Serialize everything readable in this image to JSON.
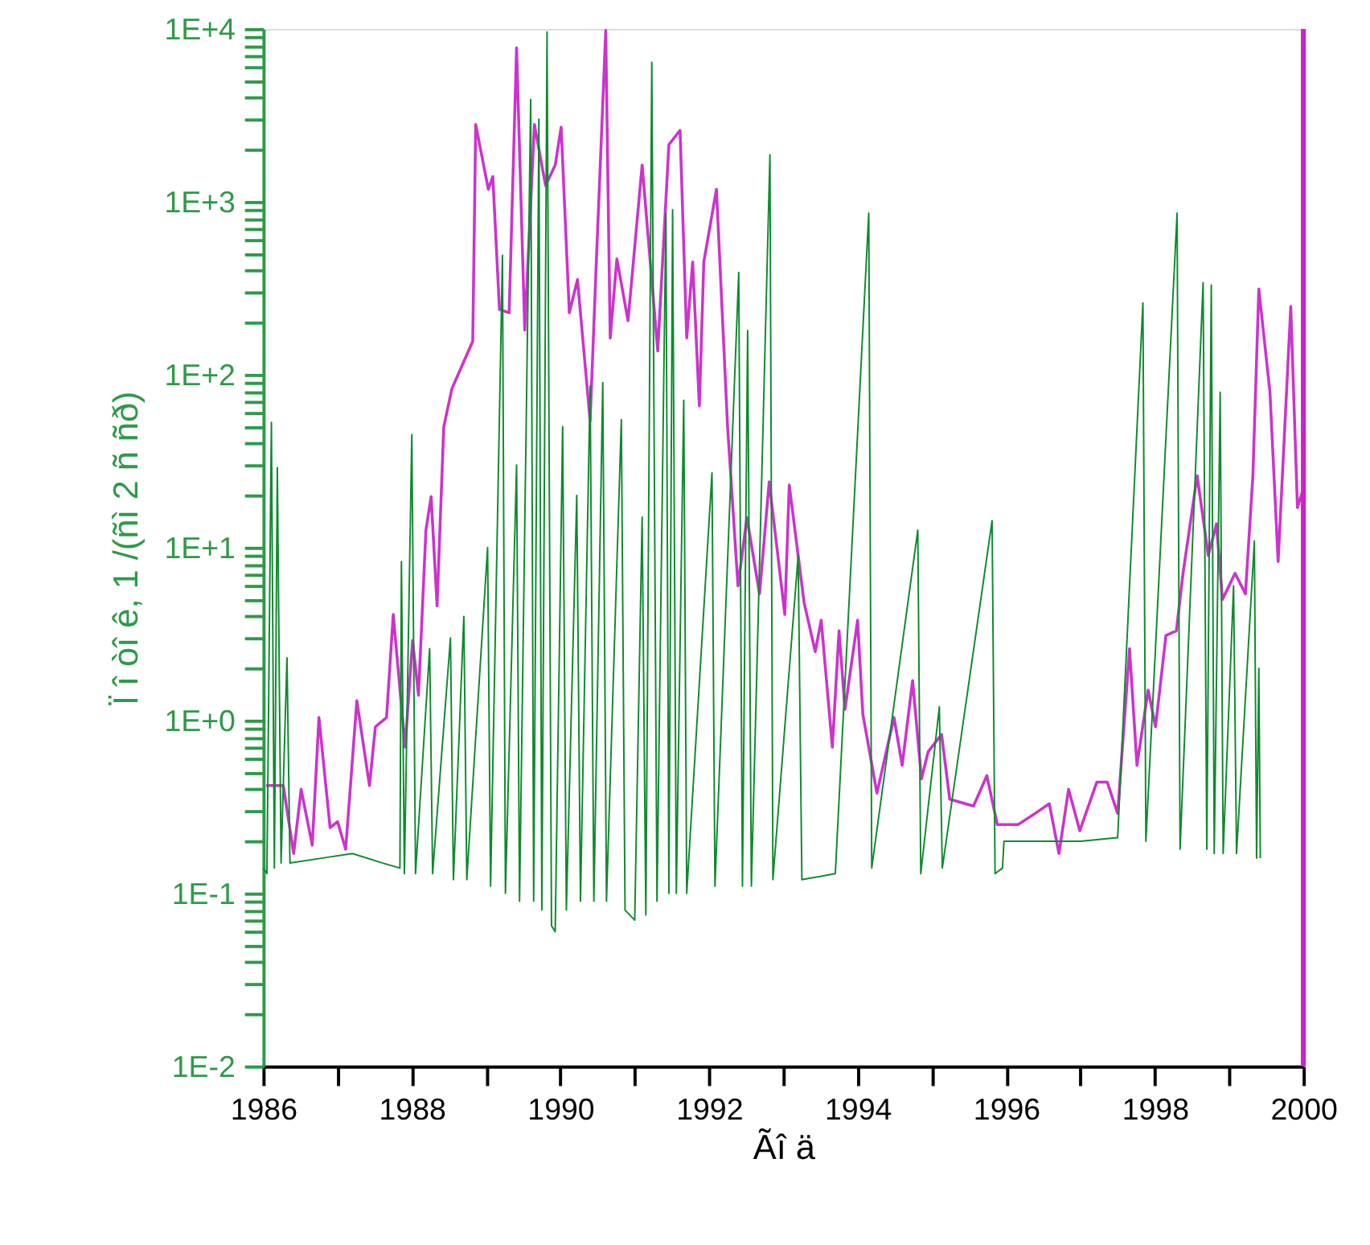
{
  "chart_data": {
    "type": "line",
    "xlabel": "Ãî ä",
    "ylabel": "Ï î òî ê, 1 /(ñì 2 ñ ñð)",
    "log": "y",
    "grid": false,
    "line_style": "solid",
    "marker": "none",
    "xlim": [
      1986,
      2000
    ],
    "xticks": [
      1986,
      {
        "value": 1987,
        "label": null
      },
      1988,
      {
        "value": 1989,
        "label": null
      },
      1990,
      {
        "value": 1991,
        "label": null
      },
      1992,
      {
        "value": 1993,
        "label": null
      },
      1994,
      {
        "value": 1995,
        "label": null
      },
      1996,
      {
        "value": 1997,
        "label": null
      },
      1998,
      {
        "value": 1999,
        "label": null
      },
      2000
    ],
    "ylim": [
      0.01,
      10000
    ],
    "yticks": [
      {
        "value": 0.01,
        "label": "1E-2"
      },
      {
        "value": 0.02,
        "label": null
      },
      {
        "value": 0.03,
        "label": null
      },
      {
        "value": 0.04,
        "label": null
      },
      {
        "value": 0.05,
        "label": null
      },
      {
        "value": 0.06,
        "label": null
      },
      {
        "value": 0.07,
        "label": null
      },
      {
        "value": 0.08,
        "label": null
      },
      {
        "value": 0.09,
        "label": null
      },
      {
        "value": 0.1,
        "label": "1E-1"
      },
      {
        "value": 0.2,
        "label": null
      },
      {
        "value": 0.3,
        "label": null
      },
      {
        "value": 0.4,
        "label": null
      },
      {
        "value": 0.5,
        "label": null
      },
      {
        "value": 0.6,
        "label": null
      },
      {
        "value": 0.7,
        "label": null
      },
      {
        "value": 0.8,
        "label": null
      },
      {
        "value": 0.9,
        "label": null
      },
      {
        "value": 1,
        "label": "1E+0"
      },
      {
        "value": 2,
        "label": null
      },
      {
        "value": 3,
        "label": null
      },
      {
        "value": 4,
        "label": null
      },
      {
        "value": 5,
        "label": null
      },
      {
        "value": 6,
        "label": null
      },
      {
        "value": 7,
        "label": null
      },
      {
        "value": 8,
        "label": null
      },
      {
        "value": 9,
        "label": null
      },
      {
        "value": 10,
        "label": "1E+1"
      },
      {
        "value": 20,
        "label": null
      },
      {
        "value": 30,
        "label": null
      },
      {
        "value": 40,
        "label": null
      },
      {
        "value": 50,
        "label": null
      },
      {
        "value": 60,
        "label": null
      },
      {
        "value": 70,
        "label": null
      },
      {
        "value": 80,
        "label": null
      },
      {
        "value": 90,
        "label": null
      },
      {
        "value": 100,
        "label": "1E+2"
      },
      {
        "value": 200,
        "label": null
      },
      {
        "value": 300,
        "label": null
      },
      {
        "value": 400,
        "label": null
      },
      {
        "value": 500,
        "label": null
      },
      {
        "value": 600,
        "label": null
      },
      {
        "value": 700,
        "label": null
      },
      {
        "value": 800,
        "label": null
      },
      {
        "value": 900,
        "label": null
      },
      {
        "value": 1000,
        "label": "1E+3"
      },
      {
        "value": 2000,
        "label": null
      },
      {
        "value": 3000,
        "label": null
      },
      {
        "value": 4000,
        "label": null
      },
      {
        "value": 5000,
        "label": null
      },
      {
        "value": 6000,
        "label": null
      },
      {
        "value": 7000,
        "label": null
      },
      {
        "value": 8000,
        "label": null
      },
      {
        "value": 9000,
        "label": null
      },
      {
        "value": 10000,
        "label": "1E+4"
      }
    ],
    "series": [
      {
        "color": "#cc33cc",
        "x": [
          1986.04,
          1986.27,
          1986.41,
          1986.51,
          1986.66,
          1986.75,
          1986.9,
          1987.0,
          1987.11,
          1987.26,
          1987.43,
          1987.51,
          1987.66,
          1987.75,
          1987.91,
          1988.01,
          1988.09,
          1988.19,
          1988.26,
          1988.34,
          1988.43,
          1988.54,
          1988.82,
          1988.86,
          1989.03,
          1989.09,
          1989.18,
          1989.31,
          1989.41,
          1989.52,
          1989.65,
          1989.8,
          1989.93,
          1990.01,
          1990.12,
          1990.23,
          1990.4,
          1990.48,
          1990.61,
          1990.67,
          1990.76,
          1990.91,
          1991.1,
          1991.31,
          1991.46,
          1991.61,
          1991.7,
          1991.78,
          1991.87,
          1991.93,
          1992.1,
          1992.25,
          1992.39,
          1992.51,
          1992.68,
          1992.81,
          1993.02,
          1993.08,
          1993.28,
          1993.43,
          1993.51,
          1993.66,
          1993.75,
          1993.83,
          1994.0,
          1994.07,
          1994.26,
          1994.49,
          1994.6,
          1994.74,
          1994.86,
          1994.95,
          1995.13,
          1995.24,
          1995.56,
          1995.74,
          1995.88,
          1996.16,
          1996.39,
          1996.58,
          1996.71,
          1996.84,
          1996.99,
          1997.22,
          1997.36,
          1997.5,
          1997.66,
          1997.76,
          1997.91,
          1998.01,
          1998.15,
          1998.29,
          1998.38,
          1998.57,
          1998.72,
          1998.83,
          1998.91,
          1999.08,
          1999.22,
          1999.32,
          1999.4,
          1999.55,
          1999.66,
          1999.83,
          1999.92,
          2000.0
        ],
        "values": [
          0.42,
          0.42,
          0.17,
          0.4,
          0.19,
          1.04,
          0.24,
          0.26,
          0.18,
          1.3,
          0.42,
          0.92,
          1.04,
          4.1,
          0.7,
          2.9,
          1.4,
          12.6,
          19.7,
          4.6,
          50,
          83,
          156,
          2800,
          1180,
          1400,
          238,
          228,
          7760,
          181,
          2800,
          1240,
          1630,
          2700,
          228,
          355,
          54,
          412,
          9800,
          163,
          468,
          205,
          1630,
          137,
          2140,
          2590,
          163,
          448,
          66,
          448,
          1180,
          50,
          6.0,
          14.9,
          5.4,
          24,
          4.1,
          23,
          4.8,
          2.5,
          3.8,
          0.7,
          3.3,
          1.16,
          3.8,
          1.09,
          0.38,
          1.04,
          0.55,
          1.7,
          0.46,
          0.66,
          0.83,
          0.35,
          0.32,
          0.48,
          0.25,
          0.25,
          0.29,
          0.33,
          0.17,
          0.4,
          0.23,
          0.44,
          0.44,
          0.29,
          2.6,
          0.55,
          1.5,
          0.92,
          3.1,
          3.3,
          7.1,
          26,
          9.0,
          13.7,
          5.0,
          7.1,
          5.4,
          26,
          313,
          79,
          8.3,
          248,
          17,
          22
        ]
      },
      {
        "color": "#0f8a2e",
        "x": [
          1986.0,
          1986.05,
          1986.11,
          1986.15,
          1986.19,
          1986.24,
          1986.32,
          1986.36,
          1986.8,
          1987.2,
          1987.6,
          1987.84,
          1987.86,
          1987.9,
          1988.0,
          1988.05,
          1988.24,
          1988.28,
          1988.52,
          1988.56,
          1988.7,
          1988.74,
          1989.02,
          1989.06,
          1989.22,
          1989.26,
          1989.41,
          1989.45,
          1989.6,
          1989.64,
          1989.71,
          1989.75,
          1989.82,
          1989.88,
          1989.93,
          1990.03,
          1990.08,
          1990.22,
          1990.27,
          1990.4,
          1990.45,
          1990.57,
          1990.62,
          1990.82,
          1990.87,
          1991.0,
          1991.1,
          1991.15,
          1991.23,
          1991.3,
          1991.42,
          1991.46,
          1991.51,
          1991.56,
          1991.66,
          1991.7,
          1992.04,
          1992.08,
          1992.4,
          1992.45,
          1992.52,
          1992.57,
          1992.82,
          1992.86,
          1993.2,
          1993.25,
          1993.7,
          1994.15,
          1994.19,
          1994.81,
          1994.85,
          1995.1,
          1995.14,
          1995.81,
          1995.85,
          1995.95,
          1995.97,
          1996.5,
          1997.0,
          1997.5,
          1997.84,
          1997.88,
          1998.3,
          1998.34,
          1998.65,
          1998.7,
          1998.76,
          1998.8,
          1998.88,
          1998.92,
          1999.06,
          1999.1,
          1999.34,
          1999.37,
          1999.4,
          1999.42
        ],
        "values": [
          0.14,
          0.13,
          53,
          0.14,
          29,
          0.15,
          2.3,
          0.15,
          0.16,
          0.17,
          0.15,
          0.14,
          8.3,
          0.13,
          45,
          0.13,
          2.6,
          0.13,
          3.0,
          0.12,
          4.0,
          0.12,
          10,
          0.11,
          490,
          0.1,
          30,
          0.09,
          3900,
          0.09,
          3000,
          0.08,
          9600,
          0.065,
          0.06,
          50,
          0.08,
          20,
          0.09,
          86,
          0.09,
          90,
          0.09,
          55,
          0.08,
          0.07,
          15,
          0.075,
          6400,
          0.09,
          860,
          0.1,
          900,
          0.1,
          71,
          0.1,
          27,
          0.11,
          390,
          0.11,
          180,
          0.11,
          1870,
          0.12,
          9,
          0.12,
          0.13,
          860,
          0.14,
          12.6,
          0.13,
          1.2,
          0.14,
          14.3,
          0.13,
          0.14,
          0.2,
          0.2,
          0.2,
          0.21,
          260,
          0.2,
          860,
          0.18,
          340,
          0.18,
          330,
          0.17,
          79,
          0.17,
          6,
          0.17,
          10.9,
          0.16,
          2.0,
          0.16
        ]
      }
    ]
  }
}
